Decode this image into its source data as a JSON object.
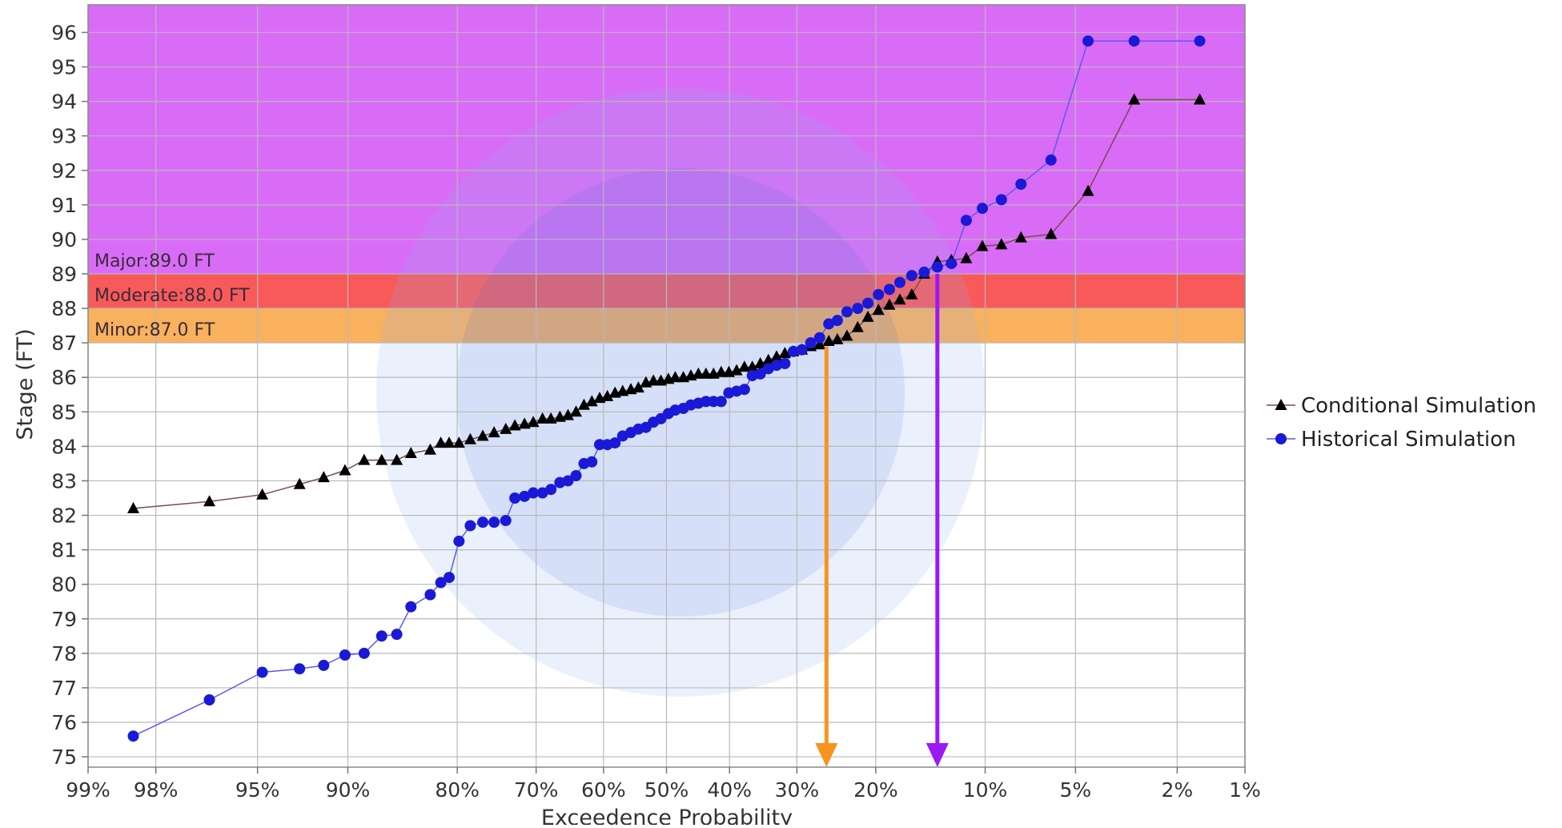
{
  "chart_data": {
    "type": "line",
    "title": "",
    "xlabel": "Exceedence Probability",
    "ylabel": "Stage (FT)",
    "x_scale": "normal-probability",
    "x_reversed": true,
    "ylim": [
      74.7,
      96.8
    ],
    "xlim": [
      99,
      1
    ],
    "x_ticks": [
      99,
      98,
      95,
      90,
      80,
      70,
      60,
      50,
      40,
      30,
      20,
      10,
      5,
      2,
      1
    ],
    "x_tick_labels": [
      "99%",
      "98%",
      "95%",
      "90%",
      "80%",
      "70%",
      "60%",
      "50%",
      "40%",
      "30%",
      "20%",
      "10%",
      "5%",
      "2%",
      "1%"
    ],
    "y_ticks": [
      75,
      76,
      77,
      78,
      79,
      80,
      81,
      82,
      83,
      84,
      85,
      86,
      87,
      88,
      89,
      90,
      91,
      92,
      93,
      94,
      95,
      96
    ],
    "grid": true,
    "legend_position": "right",
    "flood_levels": [
      {
        "label": "Major:89.0 FT",
        "from": 89.0,
        "to": 96.8,
        "color": "#d96cf7"
      },
      {
        "label": "Moderate:88.0 FT",
        "from": 88.0,
        "to": 89.0,
        "color": "#f85a5a"
      },
      {
        "label": "Minor:87.0 FT",
        "from": 87.0,
        "to": 88.0,
        "color": "#f9b15e"
      }
    ],
    "arrows": [
      {
        "x": 26,
        "y_from": 86.9,
        "y_to": 74.7,
        "color": "#f7941d"
      },
      {
        "x": 13.8,
        "y_from": 89.0,
        "y_to": 74.7,
        "color": "#9b19f5"
      }
    ],
    "series": [
      {
        "name": "Conditional Simulation",
        "marker": "triangle",
        "color": "#000000",
        "line_color": "#7a4a4a",
        "x": [
          98.4,
          96.7,
          94.8,
          93.0,
          91.6,
          90.2,
          88.8,
          87.4,
          86.1,
          84.8,
          82.9,
          81.8,
          80.9,
          79.8,
          78.5,
          77.0,
          75.6,
          74.1,
          72.9,
          71.6,
          70.4,
          69.1,
          67.9,
          66.6,
          65.4,
          64.2,
          63.0,
          61.8,
          60.6,
          59.4,
          58.2,
          57.0,
          55.7,
          54.5,
          53.3,
          52.1,
          50.9,
          49.7,
          48.6,
          47.3,
          46.1,
          44.9,
          43.7,
          42.5,
          41.3,
          40.1,
          38.9,
          37.7,
          36.5,
          35.3,
          34.1,
          32.9,
          31.7,
          30.5,
          29.3,
          28.1,
          26.9,
          25.7,
          24.6,
          23.4,
          22.1,
          20.9,
          19.7,
          18.5,
          17.4,
          16.2,
          15.0,
          13.8,
          12.6,
          11.4,
          10.2,
          8.9,
          7.7,
          6.1,
          4.5,
          3.0,
          1.6
        ],
        "y": [
          82.2,
          82.4,
          82.6,
          82.9,
          83.1,
          83.3,
          83.6,
          83.6,
          83.6,
          83.8,
          83.9,
          84.1,
          84.1,
          84.1,
          84.2,
          84.3,
          84.4,
          84.5,
          84.6,
          84.65,
          84.7,
          84.8,
          84.8,
          84.85,
          84.9,
          85.0,
          85.2,
          85.3,
          85.4,
          85.45,
          85.55,
          85.6,
          85.65,
          85.7,
          85.85,
          85.9,
          85.9,
          85.95,
          86.0,
          86.0,
          86.05,
          86.1,
          86.1,
          86.1,
          86.15,
          86.15,
          86.2,
          86.3,
          86.3,
          86.4,
          86.5,
          86.6,
          86.7,
          86.75,
          86.8,
          86.9,
          86.95,
          87.05,
          87.1,
          87.2,
          87.45,
          87.75,
          87.95,
          88.1,
          88.25,
          88.4,
          89.0,
          89.35,
          89.4,
          89.45,
          89.8,
          89.85,
          90.05,
          90.15,
          91.4,
          94.05,
          94.05
        ],
        "points_note": ""
      },
      {
        "name": "Historical Simulation",
        "marker": "circle",
        "color": "#1a1ad6",
        "line_color": "#5a5af0",
        "x": [
          98.4,
          96.7,
          94.8,
          93.0,
          91.6,
          90.2,
          88.8,
          87.4,
          86.1,
          84.8,
          82.9,
          81.8,
          80.9,
          79.8,
          78.5,
          77.0,
          75.6,
          74.1,
          72.9,
          71.6,
          70.4,
          69.1,
          67.9,
          66.6,
          65.4,
          64.2,
          63.0,
          61.8,
          60.6,
          59.4,
          58.2,
          57.0,
          55.7,
          54.5,
          53.3,
          52.1,
          50.9,
          49.7,
          48.6,
          47.3,
          46.1,
          44.9,
          43.7,
          42.5,
          41.3,
          40.1,
          38.9,
          37.7,
          36.5,
          35.3,
          34.1,
          32.9,
          31.7,
          30.5,
          29.3,
          28.1,
          26.9,
          25.7,
          24.6,
          23.4,
          22.1,
          20.9,
          19.7,
          18.5,
          17.4,
          16.2,
          15.0,
          13.8,
          12.6,
          11.4,
          10.2,
          8.9,
          7.7,
          6.1,
          4.5,
          3.0,
          1.6
        ],
        "y": [
          75.6,
          76.65,
          77.45,
          77.55,
          77.65,
          77.95,
          78.0,
          78.5,
          78.55,
          79.35,
          79.7,
          80.05,
          80.2,
          81.25,
          81.7,
          81.8,
          81.8,
          81.85,
          82.5,
          82.55,
          82.65,
          82.65,
          82.75,
          82.95,
          83.0,
          83.15,
          83.5,
          83.55,
          84.05,
          84.05,
          84.1,
          84.3,
          84.4,
          84.5,
          84.55,
          84.7,
          84.8,
          84.95,
          85.05,
          85.1,
          85.2,
          85.25,
          85.3,
          85.3,
          85.3,
          85.55,
          85.6,
          85.65,
          86.05,
          86.1,
          86.25,
          86.35,
          86.4,
          86.75,
          86.8,
          87.0,
          87.15,
          87.55,
          87.65,
          87.9,
          88.0,
          88.15,
          88.4,
          88.55,
          88.75,
          88.95,
          89.05,
          89.2,
          89.3,
          90.55,
          90.9,
          91.15,
          91.6,
          92.3,
          95.75,
          95.75,
          95.75
        ]
      }
    ]
  }
}
